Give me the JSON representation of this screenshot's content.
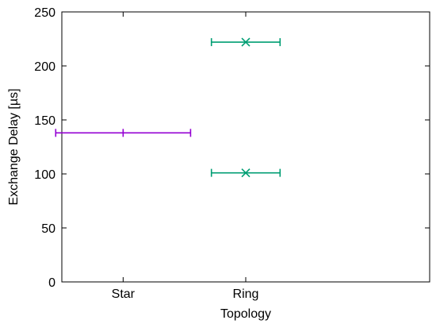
{
  "chart_data": {
    "type": "scatter",
    "title": "",
    "xlabel": "Topology",
    "ylabel": "Exchange Delay [µs]",
    "categories": [
      "Star",
      "Ring"
    ],
    "x_range": [
      0.5,
      3.5
    ],
    "ylim": [
      0,
      250
    ],
    "yticks": [
      0,
      50,
      100,
      150,
      200,
      250
    ],
    "grid": false,
    "legend": "none",
    "series": [
      {
        "color": "#9400d3",
        "marker": "plus",
        "points": [
          {
            "x": 1,
            "y": 138,
            "xerr": 0.55
          }
        ]
      },
      {
        "color": "#009e73",
        "marker": "cross",
        "points": [
          {
            "x": 2,
            "y": 222,
            "xerr": 0.28
          },
          {
            "x": 2,
            "y": 101,
            "xerr": 0.28
          }
        ]
      }
    ]
  }
}
